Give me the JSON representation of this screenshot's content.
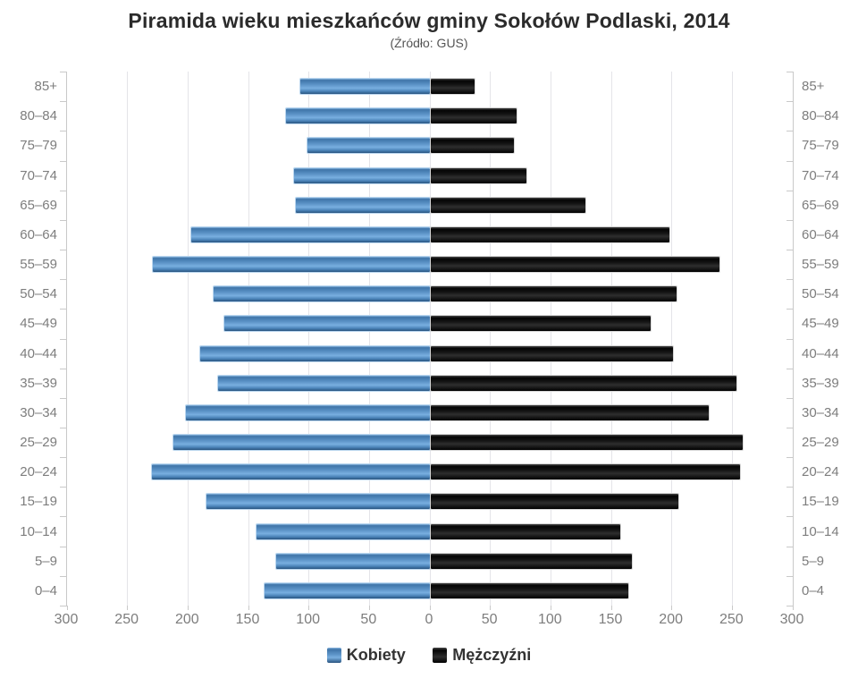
{
  "title": "Piramida wieku mieszkańców gminy Sokołów Podlaski, 2014",
  "subtitle": "(Źródło: GUS)",
  "legend": {
    "female_label": "Kobiety",
    "male_label": "Mężczyźni"
  },
  "colors": {
    "female": "#5d94c8",
    "male": "#111111",
    "axis": "#c9c9c9",
    "grid": "#e4e4e8",
    "tick_label": "#7d7d7d",
    "title_text": "#2b2b2b"
  },
  "chart_data": {
    "type": "bar",
    "subtype": "population-pyramid",
    "title": "Piramida wieku mieszkańców gminy Sokołów Podlaski, 2014",
    "subtitle": "(Źródło: GUS)",
    "categories": [
      "85+",
      "80–84",
      "75–79",
      "70–74",
      "65–69",
      "60–64",
      "55–59",
      "50–54",
      "45–49",
      "40–44",
      "35–39",
      "30–34",
      "25–29",
      "20–24",
      "15–19",
      "10–14",
      "5–9",
      "0–4"
    ],
    "series": [
      {
        "name": "Kobiety",
        "side": "left",
        "color": "#5d94c8",
        "values": [
          107,
          119,
          101,
          112,
          111,
          197,
          229,
          179,
          170,
          190,
          175,
          202,
          212,
          230,
          185,
          143,
          127,
          137
        ]
      },
      {
        "name": "Mężczyźni",
        "side": "right",
        "color": "#111111",
        "values": [
          36,
          71,
          69,
          79,
          128,
          197,
          239,
          203,
          182,
          200,
          253,
          230,
          258,
          256,
          205,
          157,
          166,
          163
        ]
      }
    ],
    "xlim": [
      -300,
      300
    ],
    "x_tick_step": 50,
    "x_tick_labels": [
      "300",
      "250",
      "200",
      "150",
      "100",
      "50",
      "0",
      "50",
      "100",
      "150",
      "200",
      "250",
      "300"
    ],
    "grid": true,
    "legend_position": "bottom"
  }
}
